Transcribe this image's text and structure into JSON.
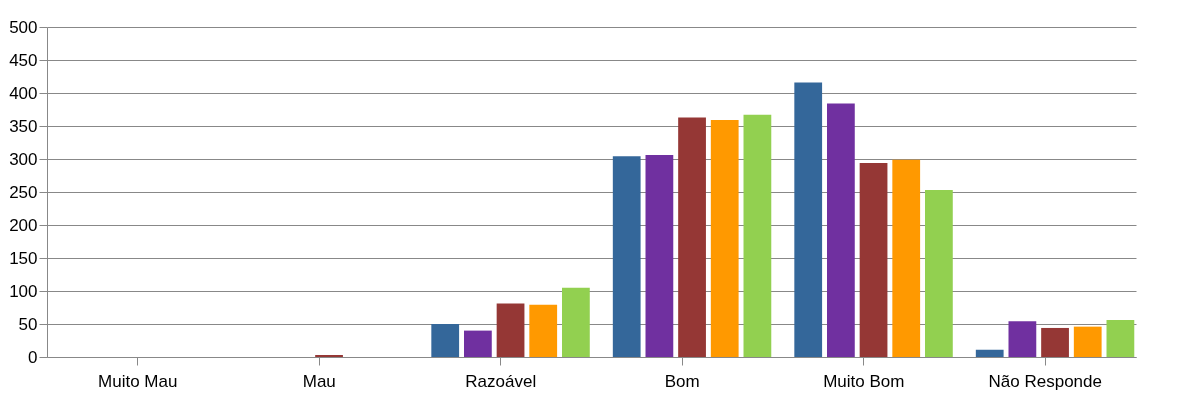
{
  "chart_data": {
    "type": "bar",
    "categories": [
      "Muito Mau",
      "Mau",
      "Razoável",
      "Bom",
      "Muito Bom",
      "Não Responde"
    ],
    "series": [
      {
        "color": "#34679a",
        "values": [
          0,
          0,
          50,
          304,
          416,
          11
        ]
      },
      {
        "color": "#7030a0",
        "values": [
          0,
          0,
          40,
          306,
          384,
          54
        ]
      },
      {
        "color": "#953735",
        "values": [
          0,
          3,
          81,
          363,
          294,
          44
        ]
      },
      {
        "color": "#ff9900",
        "values": [
          0,
          0,
          79,
          359,
          299,
          46
        ]
      },
      {
        "color": "#92d050",
        "values": [
          0,
          0,
          105,
          367,
          253,
          56
        ]
      }
    ],
    "ylim": [
      0,
      500
    ],
    "yticks": [
      0,
      50,
      100,
      150,
      200,
      250,
      300,
      350,
      400,
      450,
      500
    ],
    "grid": "y",
    "legend": false
  }
}
